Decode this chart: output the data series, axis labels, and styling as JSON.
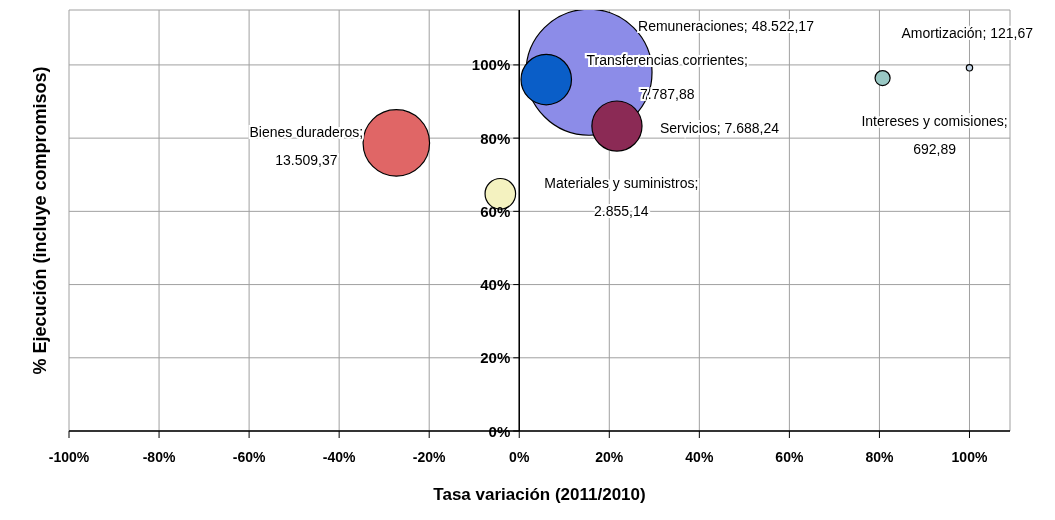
{
  "chart_data": {
    "type": "bubble",
    "xlabel": "Tasa variación (2011/2010)",
    "ylabel": "% Ejecución (incluye compromisos)",
    "x": [
      15.5,
      100,
      6,
      21.7,
      -27.3,
      -4.2,
      80.7
    ],
    "values": [
      98,
      99.2,
      96,
      83.3,
      78.7,
      64.8,
      96.4
    ],
    "sizes": [
      1,
      0.0025,
      0.1605,
      0.1584,
      0.2784,
      0.0588,
      0.0143
    ],
    "colors": [
      "#8c8ce8",
      "#c8d8e8",
      "#0a5ec8",
      "#8b2a55",
      "#e06666",
      "#f4f2c0",
      "#99c8c4"
    ],
    "annotations": [
      "Remuneraciones; 48.522,17",
      "Amortización; 121,67",
      "Transferencias corrientes; 7.787,88",
      "Servicios; 7.688,24",
      "Bienes duraderos; 13.509,37",
      "Materiales y suministros; 2.855,14",
      "Intereses y comisiones; 692,89"
    ],
    "xlim": [
      -100,
      109
    ],
    "ylim": [
      0,
      115
    ],
    "xticks": [
      {
        "value": -100,
        "label": "-100%"
      },
      {
        "value": -80,
        "label": "-80%"
      },
      {
        "value": -60,
        "label": "-60%"
      },
      {
        "value": -40,
        "label": "-40%"
      },
      {
        "value": -20,
        "label": "-20%"
      },
      {
        "value": 0,
        "label": "0%"
      },
      {
        "value": 20,
        "label": "20%"
      },
      {
        "value": 40,
        "label": "40%"
      },
      {
        "value": 60,
        "label": "60%"
      },
      {
        "value": 80,
        "label": "80%"
      },
      {
        "value": 100,
        "label": "100%"
      }
    ],
    "yticks": [
      {
        "value": 0,
        "label": "0%"
      },
      {
        "value": 20,
        "label": "20%"
      },
      {
        "value": 40,
        "label": "40%"
      },
      {
        "value": 60,
        "label": "60%"
      },
      {
        "value": 80,
        "label": "80%"
      },
      {
        "value": 100,
        "label": "100%"
      }
    ],
    "grid": true
  }
}
